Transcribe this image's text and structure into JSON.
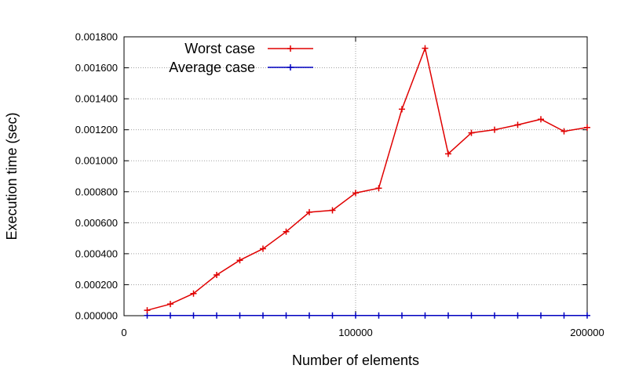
{
  "chart_data": {
    "type": "line",
    "title": "",
    "xlabel": "Number of elements",
    "ylabel": "Execution time (sec)",
    "xlim": [
      0,
      200000
    ],
    "ylim": [
      0,
      0.0018
    ],
    "x_ticks": [
      {
        "value": 0,
        "label": "0"
      },
      {
        "value": 100000,
        "label": "100000"
      },
      {
        "value": 200000,
        "label": "200000"
      }
    ],
    "y_ticks": [
      {
        "value": 0,
        "label": "0.000000"
      },
      {
        "value": 0.0002,
        "label": "0.000200"
      },
      {
        "value": 0.0004,
        "label": "0.000400"
      },
      {
        "value": 0.0006,
        "label": "0.000600"
      },
      {
        "value": 0.0008,
        "label": "0.000800"
      },
      {
        "value": 0.001,
        "label": "0.001000"
      },
      {
        "value": 0.0012,
        "label": "0.001200"
      },
      {
        "value": 0.0014,
        "label": "0.001400"
      },
      {
        "value": 0.0016,
        "label": "0.001600"
      },
      {
        "value": 0.0018,
        "label": "0.001800"
      }
    ],
    "grid": true,
    "legend_position": "top-left",
    "x": [
      10000,
      20000,
      30000,
      40000,
      50000,
      60000,
      70000,
      80000,
      90000,
      100000,
      110000,
      120000,
      130000,
      140000,
      150000,
      160000,
      170000,
      180000,
      190000,
      200000
    ],
    "series": [
      {
        "name": "Worst case",
        "color": "#e00000",
        "values": [
          3.5e-05,
          7.5e-05,
          0.000143,
          0.000263,
          0.000358,
          0.000432,
          0.000542,
          0.000668,
          0.00068,
          0.000792,
          0.000823,
          0.001333,
          0.001726,
          0.001045,
          0.00118,
          0.0012,
          0.001232,
          0.001268,
          0.00119,
          0.001215
        ]
      },
      {
        "name": "Average case",
        "color": "#0000c0",
        "values": [
          1e-06,
          1e-06,
          1e-06,
          1e-06,
          1e-06,
          1e-06,
          1e-06,
          1e-06,
          1e-06,
          1e-06,
          1e-06,
          1e-06,
          1e-06,
          1e-06,
          1e-06,
          1e-06,
          1e-06,
          1e-06,
          1e-06,
          1e-06
        ]
      }
    ]
  }
}
